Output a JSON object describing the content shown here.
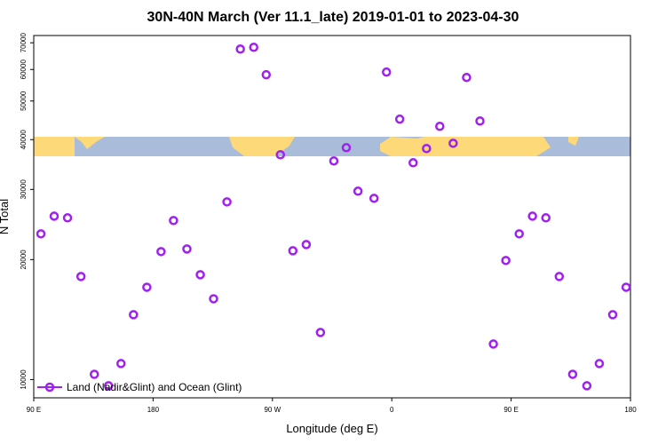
{
  "chart_data": {
    "type": "scatter",
    "title": "30N-40N March (Ver 11.1_late)   2019-01-01 to 2023-04-30",
    "xlabel": "Longitude (deg E)",
    "ylabel": "N Total",
    "ylog": true,
    "legend": "lower left",
    "xlim": [
      90,
      540
    ],
    "ylim": [
      9000,
      73000
    ],
    "xticks": [
      {
        "value": 90,
        "label": "90 E"
      },
      180,
      {
        "value": 270,
        "label": "90 W"
      },
      {
        "value": 360,
        "label": "0"
      },
      {
        "value": 450,
        "label": "90 E"
      },
      {
        "value": 540,
        "label": "180"
      }
    ],
    "yticks": [
      10000,
      20000,
      30000,
      40000,
      50000,
      60000,
      70000
    ],
    "series": [
      {
        "name": "Land (Nadir&Glint) and Ocean (Glint)",
        "color": "#a020f0",
        "x": [
          95.4,
          105.4,
          115.5,
          125.6,
          135.7,
          146.4,
          155.8,
          165.2,
          175.3,
          186.0,
          195.4,
          205.5,
          215.6,
          225.6,
          235.7,
          245.8,
          255.9,
          265.3,
          276.0,
          285.4,
          295.5,
          306.2,
          316.3,
          325.7,
          334.5,
          346.6,
          356.0,
          366.0,
          376.1,
          386.2,
          396.2,
          406.3,
          416.4,
          426.5,
          436.6,
          446.0,
          456.1,
          466.1,
          476.2,
          486.3,
          496.4,
          507.1,
          516.5,
          526.6,
          536.7
        ],
        "values": [
          23210,
          25710,
          25460,
          18140,
          10310,
          9650,
          10970,
          14550,
          17050,
          20950,
          25070,
          21270,
          18330,
          15950,
          27920,
          67500,
          68200,
          58200,
          36650,
          21050,
          21820,
          13130,
          35370,
          38190,
          29700,
          28500,
          59100,
          45030,
          35000,
          38000,
          43200,
          39170,
          57300,
          44550,
          12280,
          19900,
          23210,
          25710,
          25460,
          18140,
          10310,
          9650,
          10970,
          14550,
          17050
        ]
      }
    ]
  }
}
